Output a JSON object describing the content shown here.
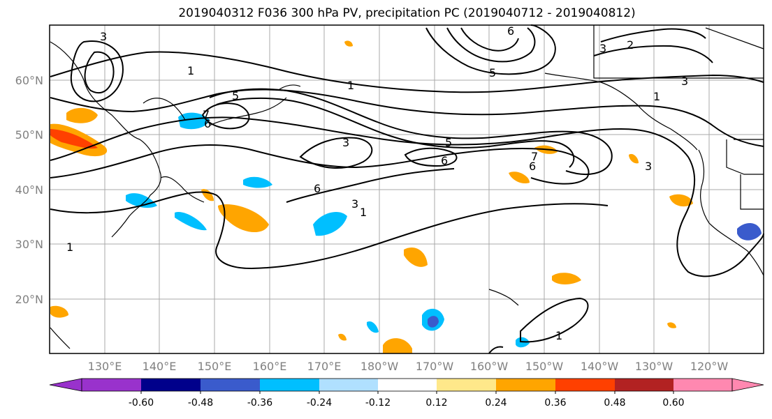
{
  "title": "2019040312 F036 300 hPa PV, precipitation PC (2019040712 - 2019040812)",
  "lat_labels": [
    "60°N",
    "50°N",
    "40°N",
    "30°N",
    "20°N"
  ],
  "lon_labels": [
    "130°E",
    "140°E",
    "150°E",
    "160°E",
    "170°E",
    "180°W",
    "170°W",
    "160°W",
    "150°W",
    "140°W",
    "130°W",
    "120°W"
  ],
  "contour_labels": [
    "1",
    "1",
    "1",
    "1",
    "1",
    "1",
    "3",
    "3",
    "3",
    "3",
    "3",
    "3",
    "5",
    "5",
    "5",
    "6",
    "6",
    "6",
    "6",
    "6",
    "7",
    "7",
    "2"
  ],
  "colorbar": {
    "colors": [
      "#9932CC",
      "#00008B",
      "#3A5BCC",
      "#00BFFF",
      "#B0E0FF",
      "#FFFFFF",
      "#FFE88A",
      "#FFA500",
      "#FF4000",
      "#B22222",
      "#FF88B0"
    ],
    "tick_labels": [
      "-0.60",
      "-0.48",
      "-0.36",
      "-0.24",
      "-0.12",
      "0.12",
      "0.24",
      "0.36",
      "0.48",
      "0.60"
    ]
  }
}
